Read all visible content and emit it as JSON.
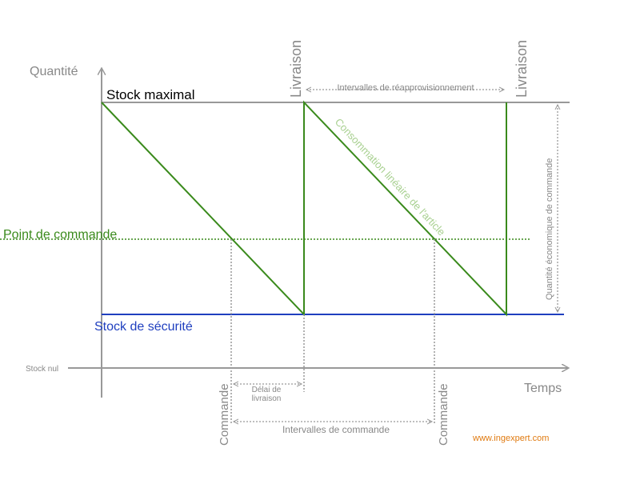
{
  "axes": {
    "y_label": "Quantité",
    "x_label": "Temps",
    "zero_label": "Stock nul"
  },
  "levels": {
    "max": "Stock maximal",
    "reorder": "Point de commande",
    "safety": "Stock de sécurité"
  },
  "events": {
    "delivery_1": "Livraison",
    "delivery_2": "Livraison",
    "order_1": "Commande",
    "order_2": "Commande"
  },
  "intervals": {
    "replenishment": "Intervalles de réapprovisionnement",
    "order": "Intervalles de commande",
    "lead_time_1": "Délai de",
    "lead_time_2": "livraison",
    "quantity": "Quantité économique de commande"
  },
  "consumption": "Consommation linéaire de l'article",
  "source": "www.ingexpert.com"
}
